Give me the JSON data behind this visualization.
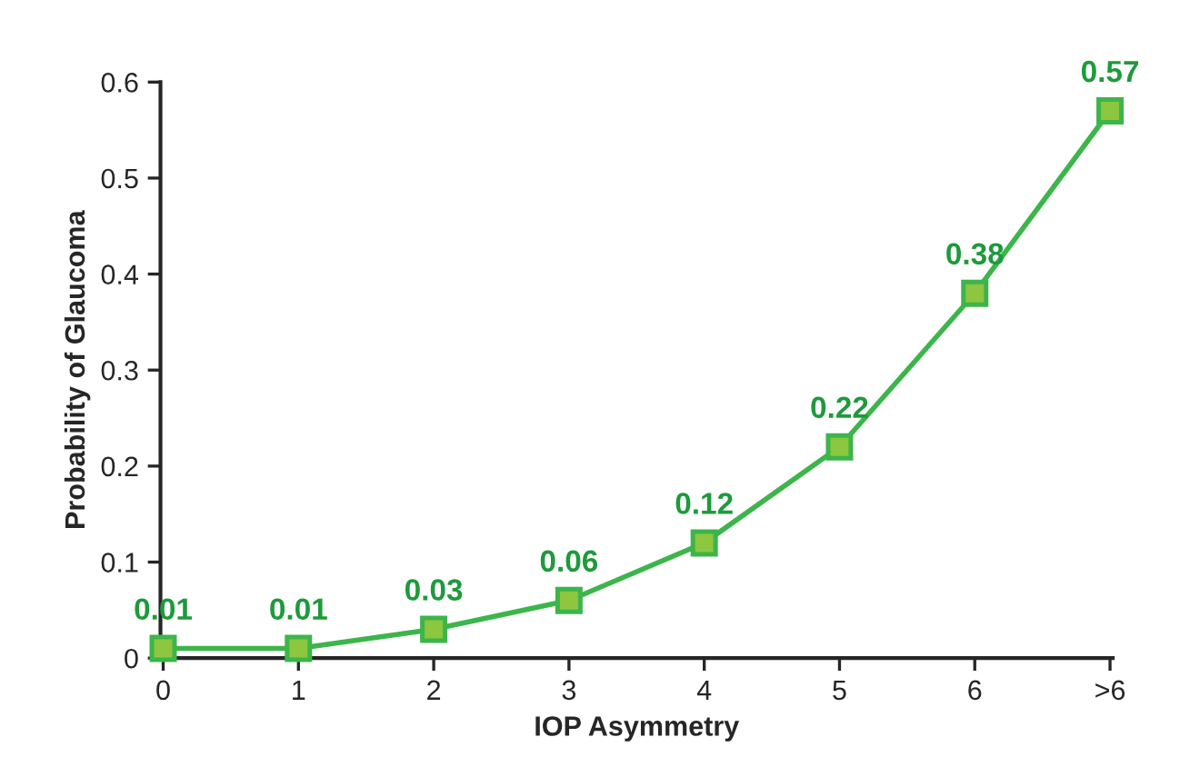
{
  "chart_data": {
    "type": "line",
    "xlabel": "IOP Asymmetry",
    "ylabel": "Probability of Glaucoma",
    "categories": [
      "0",
      "1",
      "2",
      "3",
      "4",
      "5",
      "6",
      ">6"
    ],
    "series": [
      {
        "color": "#3cb54a",
        "values": [
          0.01,
          0.01,
          0.03,
          0.06,
          0.12,
          0.22,
          0.38,
          0.57
        ]
      }
    ],
    "ylim": [
      0,
      0.6
    ],
    "yticks": [
      0,
      0.1,
      0.2,
      0.3,
      0.4,
      0.5,
      0.6
    ],
    "data_labels": true,
    "marker": "square",
    "line_style": "solid",
    "grid": false,
    "legend": false
  }
}
